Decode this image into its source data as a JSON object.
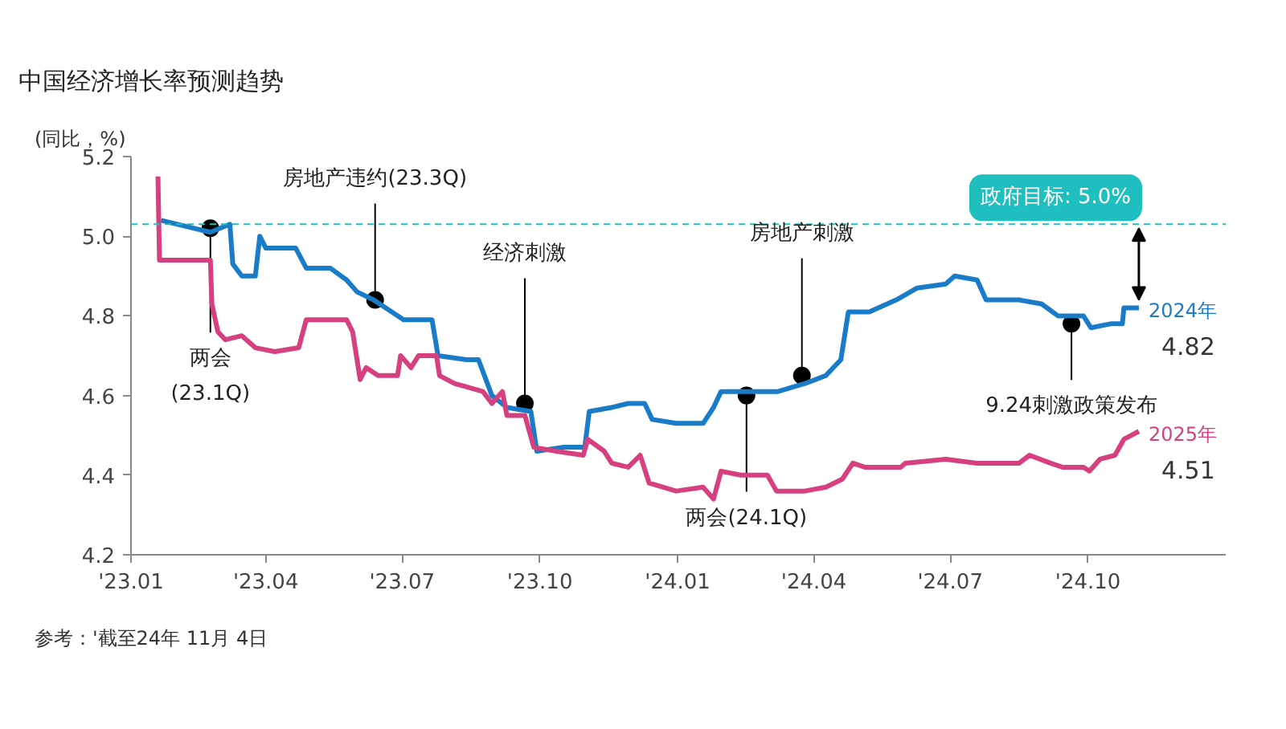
{
  "chart_data": {
    "type": "line",
    "title": "中国经济增长率预测趋势",
    "ylabel": "(同比，%)",
    "ylim": [
      4.2,
      5.2
    ],
    "yticks": [
      {
        "value": 4.2,
        "label": "4.2"
      },
      {
        "value": 4.4,
        "label": "4.4"
      },
      {
        "value": 4.6,
        "label": "4.6"
      },
      {
        "value": 4.8,
        "label": "4.8"
      },
      {
        "value": 5.0,
        "label": "5.0"
      },
      {
        "value": 5.2,
        "label": "5.2"
      }
    ],
    "xlim": [
      "2023-01-01",
      "2025-01-01"
    ],
    "xticks": [
      {
        "value": "2023-01-01",
        "label": "'23.01"
      },
      {
        "value": "2023-04-01",
        "label": "'23.04"
      },
      {
        "value": "2023-07-01",
        "label": "'23.07"
      },
      {
        "value": "2023-10-01",
        "label": "'23.10"
      },
      {
        "value": "2024-01-01",
        "label": "'24.01"
      },
      {
        "value": "2024-04-01",
        "label": "'24.04"
      },
      {
        "value": "2024-07-01",
        "label": "'24.07"
      },
      {
        "value": "2024-10-01",
        "label": "'24.10"
      }
    ],
    "grid": false,
    "legend": "right",
    "marker": "none",
    "line_style": "solid",
    "series": [
      {
        "name": "2024年",
        "color": "#1a7cc9",
        "x": [
          "2023-01-21",
          "2023-02-01",
          "2023-02-23",
          "2023-03-08",
          "2023-03-10",
          "2023-03-16",
          "2023-03-25",
          "2023-03-28",
          "2023-04-01",
          "2023-04-21",
          "2023-04-28",
          "2023-05-14",
          "2023-05-25",
          "2023-06-01",
          "2023-06-12",
          "2023-07-02",
          "2023-07-21",
          "2023-07-25",
          "2023-08-13",
          "2023-08-21",
          "2023-08-30",
          "2023-09-09",
          "2023-09-25",
          "2023-09-29",
          "2023-10-17",
          "2023-10-31",
          "2023-11-03",
          "2023-11-18",
          "2023-11-29",
          "2023-12-10",
          "2023-12-15",
          "2023-12-31",
          "2024-01-18",
          "2024-01-25",
          "2024-01-30",
          "2024-03-08",
          "2024-03-26",
          "2024-04-09",
          "2024-04-19",
          "2024-04-24",
          "2024-05-08",
          "2024-05-26",
          "2024-06-09",
          "2024-06-28",
          "2024-07-04",
          "2024-07-19",
          "2024-07-25",
          "2024-08-16",
          "2024-08-31",
          "2024-09-11",
          "2024-09-28",
          "2024-10-03",
          "2024-10-16",
          "2024-10-24",
          "2024-10-25",
          "2024-11-04"
        ],
        "values": [
          5.04,
          5.03,
          5.01,
          5.03,
          4.93,
          4.9,
          4.9,
          5.0,
          4.97,
          4.97,
          4.92,
          4.92,
          4.89,
          4.86,
          4.84,
          4.79,
          4.79,
          4.7,
          4.69,
          4.69,
          4.6,
          4.57,
          4.56,
          4.46,
          4.47,
          4.47,
          4.56,
          4.57,
          4.58,
          4.58,
          4.54,
          4.53,
          4.53,
          4.57,
          4.61,
          4.61,
          4.63,
          4.65,
          4.69,
          4.81,
          4.81,
          4.84,
          4.87,
          4.88,
          4.9,
          4.89,
          4.84,
          4.84,
          4.83,
          4.8,
          4.8,
          4.77,
          4.78,
          4.78,
          4.82,
          4.82
        ],
        "value_labels": [
          null,
          null,
          null,
          null,
          null,
          null,
          null,
          null,
          null,
          null,
          null,
          null,
          null,
          null,
          null,
          null,
          null,
          null,
          null,
          null,
          null,
          null,
          null,
          null,
          null,
          null,
          null,
          null,
          null,
          null,
          null,
          null,
          null,
          null,
          null,
          null,
          null,
          null,
          null,
          null,
          null,
          null,
          null,
          null,
          null,
          null,
          null,
          null,
          null,
          null,
          null,
          null,
          null,
          null,
          null,
          "4.82"
        ]
      },
      {
        "name": "2025年",
        "color": "#d6407f",
        "x": [
          "2023-01-19",
          "2023-01-20",
          "2023-02-23",
          "2023-02-24",
          "2023-02-28",
          "2023-03-05",
          "2023-03-16",
          "2023-03-25",
          "2023-04-07",
          "2023-04-23",
          "2023-04-28",
          "2023-05-25",
          "2023-05-29",
          "2023-06-03",
          "2023-06-07",
          "2023-06-15",
          "2023-06-28",
          "2023-06-30",
          "2023-07-07",
          "2023-07-12",
          "2023-07-24",
          "2023-07-26",
          "2023-08-05",
          "2023-08-24",
          "2023-08-30",
          "2023-09-06",
          "2023-09-09",
          "2023-09-21",
          "2023-09-27",
          "2023-10-12",
          "2023-10-30",
          "2023-11-02",
          "2023-11-13",
          "2023-11-18",
          "2023-11-29",
          "2023-12-07",
          "2023-12-13",
          "2023-12-31",
          "2024-01-18",
          "2024-01-25",
          "2024-01-30",
          "2024-02-12",
          "2024-03-01",
          "2024-03-07",
          "2024-03-26",
          "2024-04-09",
          "2024-04-20",
          "2024-04-27",
          "2024-05-05",
          "2024-05-29",
          "2024-06-01",
          "2024-06-28",
          "2024-07-19",
          "2024-08-16",
          "2024-08-23",
          "2024-09-06",
          "2024-09-14",
          "2024-09-28",
          "2024-10-02",
          "2024-10-09",
          "2024-10-19",
          "2024-10-25",
          "2024-10-30",
          "2024-11-04"
        ],
        "values": [
          5.15,
          4.94,
          4.94,
          4.83,
          4.76,
          4.74,
          4.75,
          4.72,
          4.71,
          4.72,
          4.79,
          4.79,
          4.76,
          4.64,
          4.67,
          4.65,
          4.65,
          4.7,
          4.67,
          4.7,
          4.7,
          4.65,
          4.63,
          4.61,
          4.58,
          4.61,
          4.55,
          4.55,
          4.47,
          4.46,
          4.45,
          4.49,
          4.46,
          4.43,
          4.42,
          4.45,
          4.38,
          4.36,
          4.37,
          4.34,
          4.41,
          4.4,
          4.4,
          4.36,
          4.36,
          4.37,
          4.39,
          4.43,
          4.42,
          4.42,
          4.43,
          4.44,
          4.43,
          4.43,
          4.45,
          4.43,
          4.42,
          4.42,
          4.41,
          4.44,
          4.45,
          4.49,
          4.5,
          4.51
        ],
        "value_labels": [
          null,
          null,
          null,
          null,
          null,
          null,
          null,
          null,
          null,
          null,
          null,
          null,
          null,
          null,
          null,
          null,
          null,
          null,
          null,
          null,
          null,
          null,
          null,
          null,
          null,
          null,
          null,
          null,
          null,
          null,
          null,
          null,
          null,
          null,
          null,
          null,
          null,
          null,
          null,
          null,
          null,
          null,
          null,
          null,
          null,
          null,
          null,
          null,
          null,
          null,
          null,
          null,
          null,
          null,
          null,
          null,
          null,
          null,
          null,
          null,
          null,
          null,
          null,
          "4.51"
        ]
      }
    ],
    "ref_lines": [
      {
        "axis": "y",
        "value": 5.03,
        "label": "政府目标: 5.0%",
        "color": "#1fbfbf",
        "line_style": "dashed"
      }
    ],
    "annotations": [
      {
        "text": "两会\n(23.1Q)",
        "x": "2023-02-23",
        "y": 5.02
      },
      {
        "text": "房地产违约(23.3Q)",
        "x": "2023-06-13",
        "y": 4.84
      },
      {
        "text": "经济刺激",
        "x": "2023-09-21",
        "y": 4.58
      },
      {
        "text": "两会(24.1Q)",
        "x": "2024-02-16",
        "y": 4.6
      },
      {
        "text": "房地产刺激",
        "x": "2024-03-24",
        "y": 4.65
      },
      {
        "text": "9.24刺激政策发布",
        "x": "2024-09-20",
        "y": 4.78
      },
      "参考：'截至24年 11月 4日"
    ]
  }
}
